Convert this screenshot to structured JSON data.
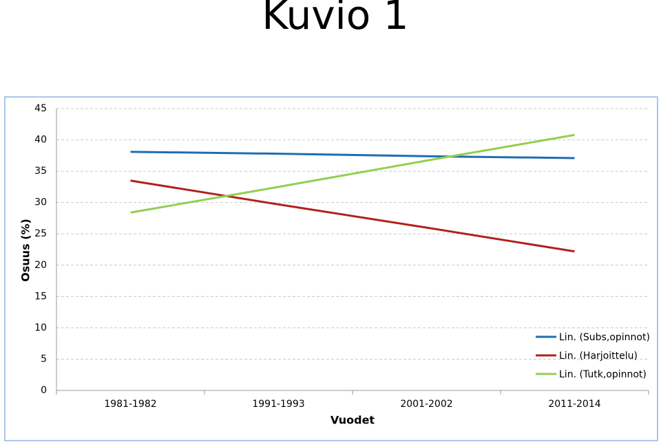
{
  "title": "Kuvio 1",
  "chart_data": {
    "type": "line",
    "y_label": "Osuus (%)",
    "x_label": "Vuodet",
    "categories": [
      "1981-1982",
      "1991-1993",
      "2001-2002",
      "2011-2014"
    ],
    "series": [
      {
        "name": "Lin. (Subs,opinnot)",
        "color": "#1f6db0",
        "values": [
          38.1,
          37.8,
          37.4,
          37.1
        ]
      },
      {
        "name": "Lin. (Harjoittelu)",
        "color": "#b0211c",
        "values": [
          33.5,
          29.7,
          26.0,
          22.2
        ]
      },
      {
        "name": "Lin. (Tutk,opinnot)",
        "color": "#92cf50",
        "values": [
          28.4,
          32.5,
          36.7,
          40.8
        ]
      }
    ],
    "ylim": [
      0,
      45
    ],
    "yticks": [
      0,
      5,
      10,
      15,
      20,
      25,
      30,
      35,
      40,
      45
    ],
    "grid": true,
    "legend": "lower right"
  }
}
